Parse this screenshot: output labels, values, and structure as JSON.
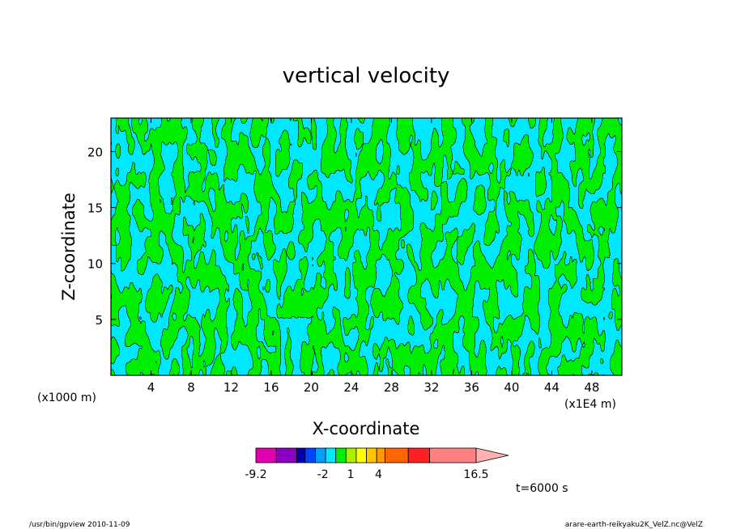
{
  "chart_data": {
    "type": "heatmap",
    "title": "vertical velocity",
    "xlabel": "X-coordinate",
    "ylabel": "Z-coordinate",
    "x_unit": "(x1E4 m)",
    "y_unit": "(x1000 m)",
    "xlim": [
      0,
      51
    ],
    "ylim": [
      0,
      23
    ],
    "x_ticks": [
      4,
      8,
      12,
      16,
      20,
      24,
      28,
      32,
      36,
      40,
      44,
      48
    ],
    "y_ticks": [
      5,
      10,
      15,
      20
    ],
    "field_colors": {
      "negative": "#00e8ff",
      "positive": "#00ee00",
      "contour": "#000000"
    },
    "colorbar": {
      "tick_labels": [
        "-9.2",
        "-2",
        "1",
        "4",
        "16.5"
      ],
      "tick_values": [
        -9.2,
        -2,
        1,
        4,
        16.5
      ],
      "bins": [
        {
          "from": -9.2,
          "to": -7.0,
          "color": "#e000b0"
        },
        {
          "from": -7.0,
          "to": -4.8,
          "color": "#8a00c0"
        },
        {
          "from": -4.8,
          "to": -3.9,
          "color": "#0000b0"
        },
        {
          "from": -3.9,
          "to": -2.8,
          "color": "#0044ff"
        },
        {
          "from": -2.8,
          "to": -1.7,
          "color": "#00a0ff"
        },
        {
          "from": -1.7,
          "to": -0.6,
          "color": "#00e8ff"
        },
        {
          "from": -0.6,
          "to": 0.5,
          "color": "#00ee00"
        },
        {
          "from": 0.5,
          "to": 1.6,
          "color": "#aaee00"
        },
        {
          "from": 1.6,
          "to": 2.7,
          "color": "#ffff00"
        },
        {
          "from": 2.7,
          "to": 3.8,
          "color": "#ffc800"
        },
        {
          "from": 3.8,
          "to": 4.7,
          "color": "#ff9900"
        },
        {
          "from": 4.7,
          "to": 7.2,
          "color": "#ff6600"
        },
        {
          "from": 7.2,
          "to": 9.5,
          "color": "#ff2020"
        },
        {
          "from": 9.5,
          "to": 14.5,
          "color": "#ff8080"
        }
      ],
      "overflow_color": "#ffb0b0"
    },
    "time_label": "t=6000 s"
  },
  "footer": {
    "left": "/usr/bin/gpview   2010-11-09",
    "right": "arare-earth-reikyaku2K_VelZ.nc@VelZ"
  }
}
